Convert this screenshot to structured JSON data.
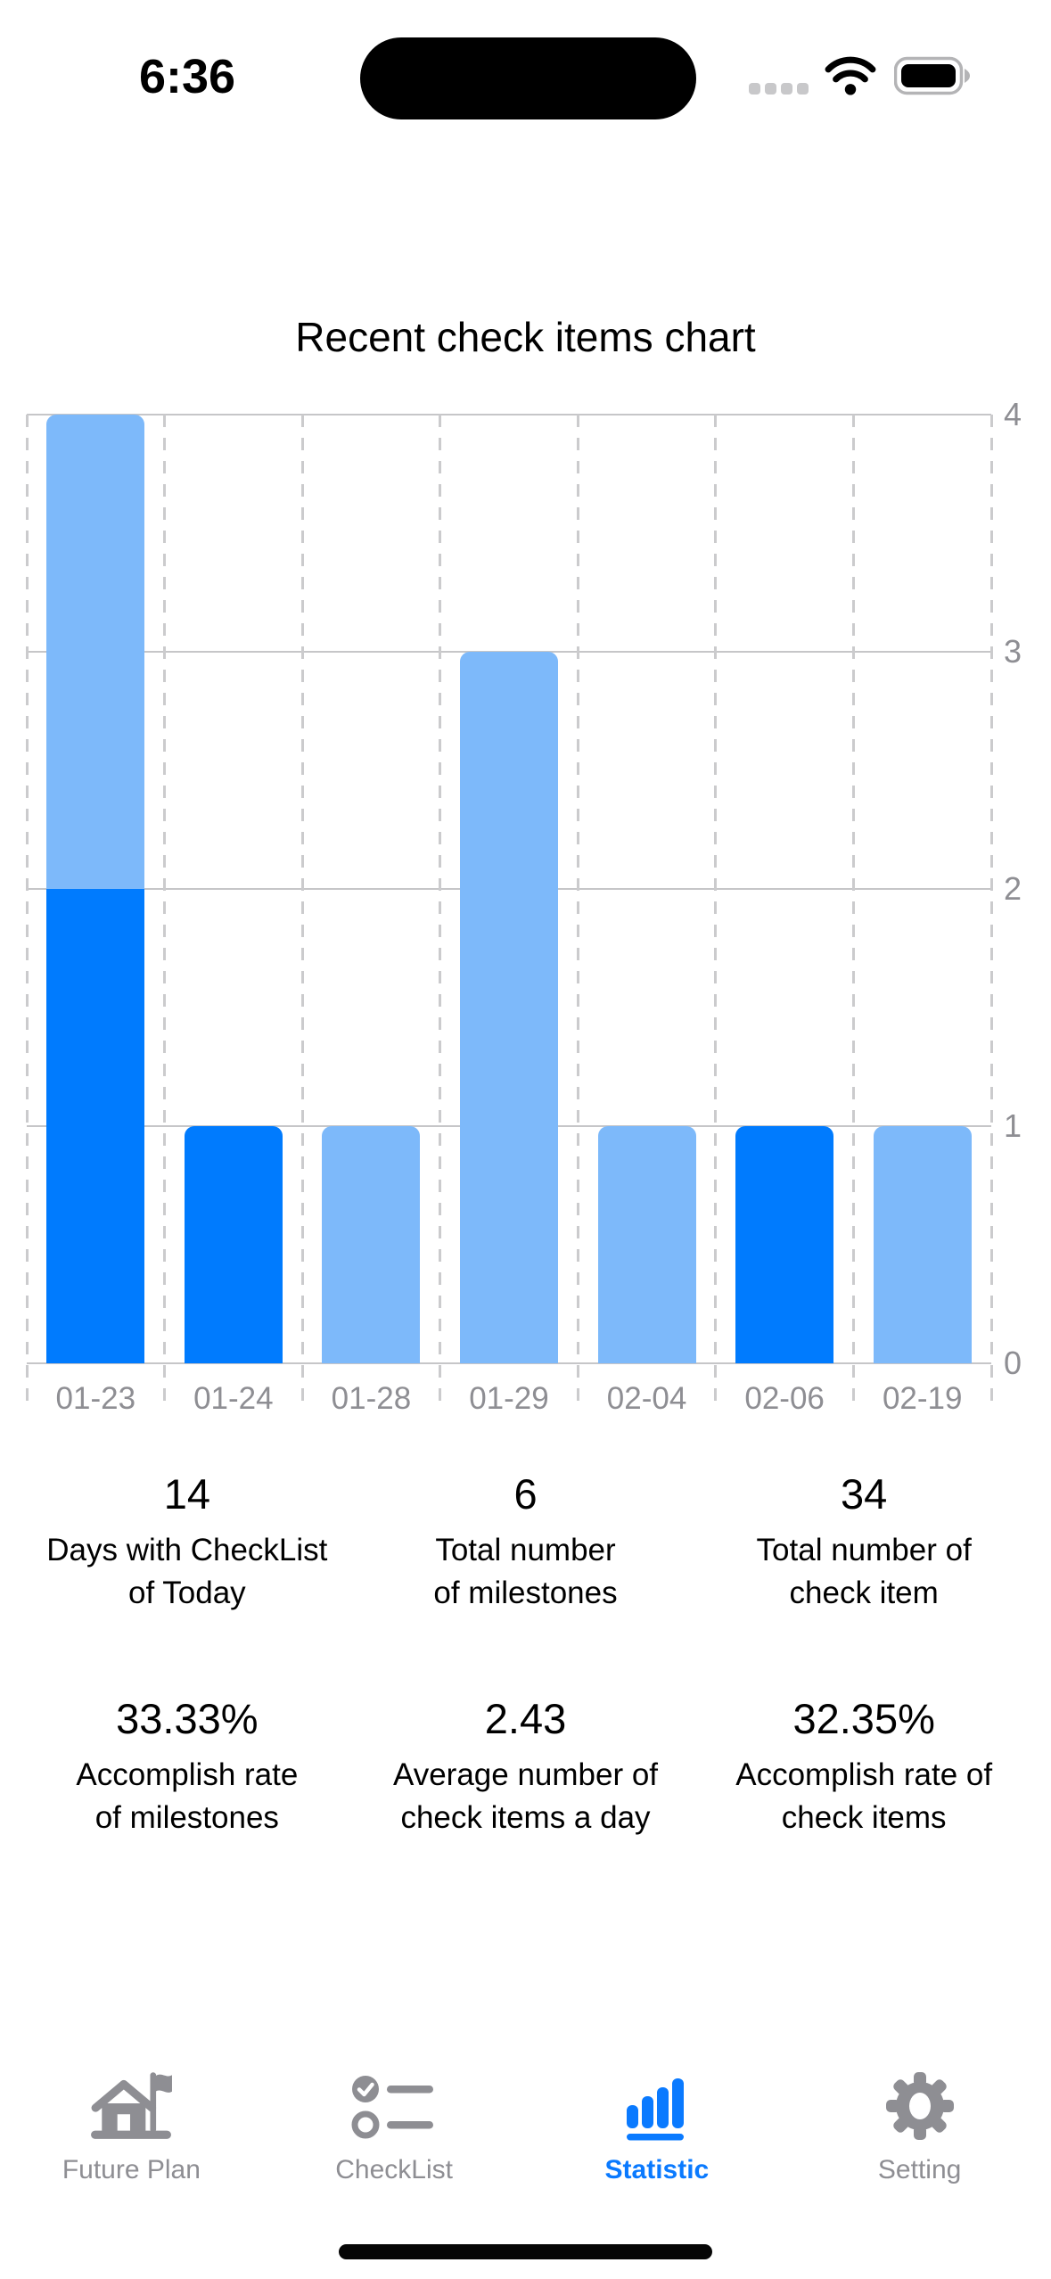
{
  "status_bar": {
    "time": "6:36"
  },
  "chart_title": "Recent check items chart",
  "chart_data": {
    "type": "bar",
    "stacked": true,
    "title": "Recent check items chart",
    "categories": [
      "01-23",
      "01-24",
      "01-28",
      "01-29",
      "02-04",
      "02-06",
      "02-19"
    ],
    "series": [
      {
        "name": "dark-blue",
        "color": "#007BFE",
        "values": [
          2,
          1,
          0,
          0,
          0,
          1,
          0
        ]
      },
      {
        "name": "light-blue",
        "color": "#7DB9FA",
        "values": [
          2,
          0,
          1,
          3,
          1,
          0,
          1
        ]
      }
    ],
    "totals": [
      4,
      1,
      1,
      3,
      1,
      1,
      1
    ],
    "ylim": [
      0,
      4
    ],
    "yticks": [
      0,
      1,
      2,
      3,
      4
    ],
    "yaxis_side": "right",
    "grid": {
      "horizontal": "solid",
      "vertical": "dashed"
    },
    "legend": "none"
  },
  "stats": {
    "row1": [
      {
        "value": "14",
        "label": "Days with CheckList\nof Today"
      },
      {
        "value": "6",
        "label": "Total number\nof milestones"
      },
      {
        "value": "34",
        "label": "Total number of\ncheck item"
      }
    ],
    "row2": [
      {
        "value": "33.33%",
        "label": "Accomplish rate\nof milestones"
      },
      {
        "value": "2.43",
        "label": "Average number of\ncheck items a day"
      },
      {
        "value": "32.35%",
        "label": "Accomplish rate of\ncheck items"
      }
    ]
  },
  "tab_bar": {
    "items": [
      {
        "label": "Future Plan",
        "icon": "house-flag-icon",
        "active": false
      },
      {
        "label": "CheckList",
        "icon": "checklist-icon",
        "active": false
      },
      {
        "label": "Statistic",
        "icon": "bar-chart-icon",
        "active": true
      },
      {
        "label": "Setting",
        "icon": "gear-icon",
        "active": false
      }
    ],
    "active_color": "#0A7AFF",
    "inactive_color": "#8E8E93"
  }
}
